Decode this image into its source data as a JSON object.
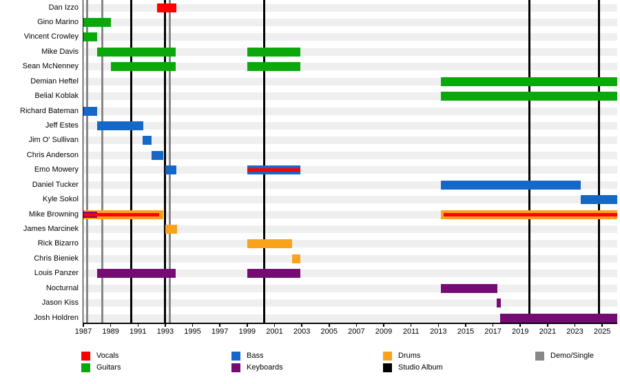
{
  "colors": {
    "vocals": "#ff0000",
    "guitars": "#0ba80b",
    "bass": "#1668c8",
    "keyboards": "#740c74",
    "drums": "#f9a31c",
    "studio_album": "#000000",
    "demo_single": "#878787",
    "row_band": "#efefef",
    "axis": "#000000"
  },
  "chart_data": {
    "type": "bar",
    "subtype": "gantt-band-membership-timeline",
    "title": "",
    "x_axis": {
      "min_year": 1987,
      "max_year": 2026.1,
      "tick_years": [
        1987,
        1989,
        1991,
        1993,
        1995,
        1997,
        1999,
        2001,
        2003,
        2005,
        2007,
        2009,
        2011,
        2013,
        2015,
        2017,
        2019,
        2021,
        2023,
        2025
      ],
      "tick_labels": [
        "1987",
        "1989",
        "1991",
        "1993",
        "1995",
        "1997",
        "1999",
        "2001",
        "2003",
        "2005",
        "2007",
        "2009",
        "2011",
        "2013",
        "2015",
        "2017",
        "2019",
        "2021",
        "2023",
        "2025"
      ]
    },
    "members": [
      {
        "name": "Dan Izzo",
        "bars": [
          {
            "role": "vocals",
            "start": 1992.4,
            "end": 1993.8,
            "layer": "full"
          }
        ]
      },
      {
        "name": "Gino Marino",
        "bars": [
          {
            "role": "guitars",
            "start": 1987.0,
            "end": 1989.0,
            "layer": "full"
          }
        ]
      },
      {
        "name": "Vincent Crowley",
        "bars": [
          {
            "role": "guitars",
            "start": 1987.0,
            "end": 1988.0,
            "layer": "full"
          }
        ]
      },
      {
        "name": "Mike Davis",
        "bars": [
          {
            "role": "guitars",
            "start": 1988.0,
            "end": 1993.75,
            "layer": "full"
          },
          {
            "role": "guitars",
            "start": 1999.0,
            "end": 2002.9,
            "layer": "full"
          }
        ]
      },
      {
        "name": "Sean McNenney",
        "bars": [
          {
            "role": "guitars",
            "start": 1989.0,
            "end": 1993.75,
            "layer": "full"
          },
          {
            "role": "guitars",
            "start": 1999.0,
            "end": 2002.9,
            "layer": "full"
          }
        ]
      },
      {
        "name": "Demian Heftel",
        "bars": [
          {
            "role": "guitars",
            "start": 2013.2,
            "end": 2026.1,
            "layer": "full"
          }
        ]
      },
      {
        "name": "Belial Koblak",
        "bars": [
          {
            "role": "guitars",
            "start": 2013.2,
            "end": 2026.1,
            "layer": "full"
          }
        ]
      },
      {
        "name": "Richard Bateman",
        "bars": [
          {
            "role": "bass",
            "start": 1987.0,
            "end": 1988.0,
            "layer": "full"
          }
        ]
      },
      {
        "name": "Jeff Estes",
        "bars": [
          {
            "role": "bass",
            "start": 1988.0,
            "end": 1991.4,
            "layer": "full"
          }
        ]
      },
      {
        "name": "Jim O' Sullivan",
        "bars": [
          {
            "role": "bass",
            "start": 1991.35,
            "end": 1992.0,
            "layer": "full"
          }
        ]
      },
      {
        "name": "Chris Anderson",
        "bars": [
          {
            "role": "bass",
            "start": 1992.0,
            "end": 1992.85,
            "layer": "full"
          }
        ]
      },
      {
        "name": "Emo Mowery",
        "bars": [
          {
            "role": "bass",
            "start": 1993.0,
            "end": 1993.8,
            "layer": "full"
          },
          {
            "role": "bass",
            "start": 1999.0,
            "end": 2002.9,
            "layer": "full"
          },
          {
            "role": "vocals",
            "start": 1999.0,
            "end": 2002.9,
            "layer": "stripe"
          }
        ]
      },
      {
        "name": "Daniel Tucker",
        "bars": [
          {
            "role": "bass",
            "start": 2013.2,
            "end": 2023.45,
            "layer": "full"
          }
        ]
      },
      {
        "name": "Kyle Sokol",
        "bars": [
          {
            "role": "bass",
            "start": 2023.45,
            "end": 2026.1,
            "layer": "full"
          }
        ]
      },
      {
        "name": "Mike Browning",
        "bars": [
          {
            "role": "drums",
            "start": 1987.0,
            "end": 1992.85,
            "layer": "full"
          },
          {
            "role": "keyboards",
            "start": 1987.0,
            "end": 1988.0,
            "layer": "sub"
          },
          {
            "role": "vocals",
            "start": 1987.0,
            "end": 1992.55,
            "layer": "stripe"
          },
          {
            "role": "drums",
            "start": 2013.2,
            "end": 2026.1,
            "layer": "full"
          },
          {
            "role": "vocals",
            "start": 2013.4,
            "end": 2026.1,
            "layer": "stripe"
          }
        ]
      },
      {
        "name": "James Marcinek",
        "bars": [
          {
            "role": "drums",
            "start": 1993.0,
            "end": 1993.85,
            "layer": "full"
          }
        ]
      },
      {
        "name": "Rick Bizarro",
        "bars": [
          {
            "role": "drums",
            "start": 1999.0,
            "end": 2002.3,
            "layer": "full"
          }
        ]
      },
      {
        "name": "Chris Bieniek",
        "bars": [
          {
            "role": "drums",
            "start": 2002.3,
            "end": 2002.9,
            "layer": "full"
          }
        ]
      },
      {
        "name": "Louis Panzer",
        "bars": [
          {
            "role": "keyboards",
            "start": 1988.0,
            "end": 1993.75,
            "layer": "full"
          },
          {
            "role": "keyboards",
            "start": 1999.0,
            "end": 2002.9,
            "layer": "full"
          }
        ]
      },
      {
        "name": "Nocturnal",
        "bars": [
          {
            "role": "keyboards",
            "start": 2013.2,
            "end": 2017.3,
            "layer": "full"
          }
        ]
      },
      {
        "name": "Jason Kiss",
        "bars": [
          {
            "role": "keyboards",
            "start": 2017.25,
            "end": 2017.6,
            "layer": "full"
          }
        ]
      },
      {
        "name": "Josh Holdren",
        "bars": [
          {
            "role": "keyboards",
            "start": 2017.5,
            "end": 2026.1,
            "layer": "full"
          }
        ]
      }
    ],
    "release_lines": {
      "studio_album_years": [
        1990.5,
        1993.0,
        2000.25,
        2019.65,
        2024.75
      ],
      "demo_single_years": [
        1987.3,
        1988.4,
        1993.35
      ]
    },
    "legend": [
      {
        "label": "Vocals",
        "role": "vocals",
        "col": 0,
        "row": 0
      },
      {
        "label": "Guitars",
        "role": "guitars",
        "col": 0,
        "row": 1
      },
      {
        "label": "Bass",
        "role": "bass",
        "col": 1,
        "row": 0
      },
      {
        "label": "Keyboards",
        "role": "keyboards",
        "col": 1,
        "row": 1
      },
      {
        "label": "Drums",
        "role": "drums",
        "col": 2,
        "row": 0
      },
      {
        "label": "Studio Album",
        "role": "studio_album",
        "col": 2,
        "row": 1
      },
      {
        "label": "Demo/Single",
        "role": "demo_single",
        "col": 3,
        "row": 0
      }
    ]
  }
}
